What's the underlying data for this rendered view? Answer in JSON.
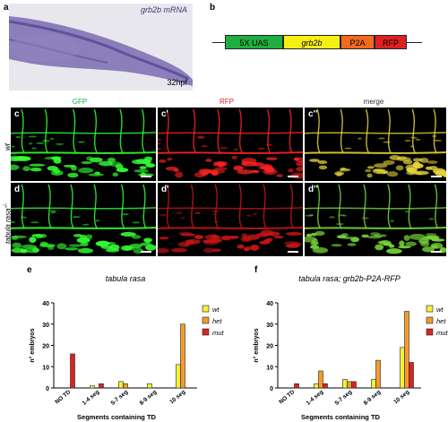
{
  "panels": {
    "a": {
      "label": "a",
      "title": "grb2b mRNA",
      "stage": "32hpf"
    },
    "b": {
      "label": "b",
      "construct": [
        "5X UAS",
        "grb2b",
        "P2A",
        "RFP"
      ]
    },
    "c_row": {
      "labels": [
        "c",
        "c'",
        "c''"
      ],
      "genotype": "wt"
    },
    "d_row": {
      "labels": [
        "d",
        "d'",
        "d''"
      ],
      "genotype": "tabula rasa"
    },
    "channels": [
      "GFP",
      "RFP",
      "merge"
    ],
    "e": {
      "label": "e"
    },
    "f": {
      "label": "f"
    }
  },
  "colors": {
    "wt": "#f2f23a",
    "het": "#f39c2c",
    "mut": "#d92424",
    "gfp": "#33ff33",
    "rfp": "#ff2222",
    "box_uas": "#1fae3f",
    "box_grb2b": "#f7ef14",
    "box_p2a": "#f26a1e",
    "box_rfp": "#e02020"
  },
  "chart_data": [
    {
      "type": "bar",
      "title": "tabula rasa",
      "ylabel": "n° embryos",
      "xlabel": "Segments containing TD",
      "categories": [
        "NO TD",
        "1-4 seg",
        "5-7 seg",
        "8-9 seg",
        "10 seg"
      ],
      "ylim": [
        0,
        40
      ],
      "yticks": [
        0,
        10,
        20,
        30,
        40
      ],
      "legend_position": "right",
      "series": [
        {
          "name": "wt",
          "values": [
            0,
            1,
            3,
            2,
            11
          ]
        },
        {
          "name": "het",
          "values": [
            0,
            0,
            2,
            0,
            30
          ]
        },
        {
          "name": "mut",
          "values": [
            16,
            2,
            0,
            0,
            0
          ]
        }
      ]
    },
    {
      "type": "bar",
      "title": "tabula rasa; grb2b-P2A-RFP",
      "ylabel": "n° embryos",
      "xlabel": "Segments containing TD",
      "categories": [
        "NO TD",
        "1-4 seg",
        "5-7 seg",
        "8-9 seg",
        "10 seg"
      ],
      "ylim": [
        0,
        40
      ],
      "yticks": [
        0,
        10,
        20,
        30,
        40
      ],
      "legend_position": "right",
      "series": [
        {
          "name": "wt",
          "values": [
            0,
            2,
            4,
            4,
            19
          ]
        },
        {
          "name": "het",
          "values": [
            0,
            8,
            3,
            13,
            36
          ]
        },
        {
          "name": "mut",
          "values": [
            2,
            2,
            3,
            0,
            12
          ]
        }
      ]
    }
  ]
}
